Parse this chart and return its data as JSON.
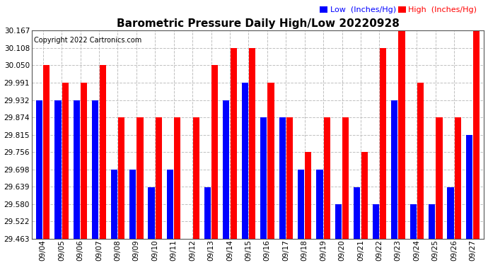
{
  "title": "Barometric Pressure Daily High/Low 20220928",
  "copyright": "Copyright 2022 Cartronics.com",
  "legend_low": "Low  (Inches/Hg)",
  "legend_high": "High  (Inches/Hg)",
  "dates": [
    "09/04",
    "09/05",
    "09/06",
    "09/07",
    "09/08",
    "09/09",
    "09/10",
    "09/11",
    "09/12",
    "09/13",
    "09/14",
    "09/15",
    "09/16",
    "09/17",
    "09/18",
    "09/19",
    "09/20",
    "09/21",
    "09/22",
    "09/23",
    "09/24",
    "09/25",
    "09/26",
    "09/27"
  ],
  "high": [
    30.05,
    29.991,
    29.991,
    30.05,
    29.874,
    29.874,
    29.874,
    29.874,
    29.874,
    30.05,
    30.108,
    30.108,
    29.991,
    29.874,
    29.756,
    29.874,
    29.874,
    29.756,
    30.108,
    30.167,
    29.991,
    29.874,
    29.874,
    30.167
  ],
  "low": [
    29.932,
    29.932,
    29.932,
    29.932,
    29.697,
    29.697,
    29.638,
    29.697,
    29.463,
    29.638,
    29.932,
    29.991,
    29.874,
    29.874,
    29.697,
    29.697,
    29.58,
    29.638,
    29.58,
    29.932,
    29.58,
    29.58,
    29.638,
    29.815
  ],
  "ylim_min": 29.463,
  "ylim_max": 30.167,
  "yticks": [
    29.463,
    29.522,
    29.58,
    29.639,
    29.698,
    29.756,
    29.815,
    29.874,
    29.932,
    29.991,
    30.05,
    30.108,
    30.167
  ],
  "bar_color_low": "#0000ff",
  "bar_color_high": "#ff0000",
  "background_color": "#ffffff",
  "grid_color": "#c0c0c0",
  "title_fontsize": 11,
  "tick_fontsize": 7.5,
  "copyright_fontsize": 7,
  "legend_fontsize": 8
}
